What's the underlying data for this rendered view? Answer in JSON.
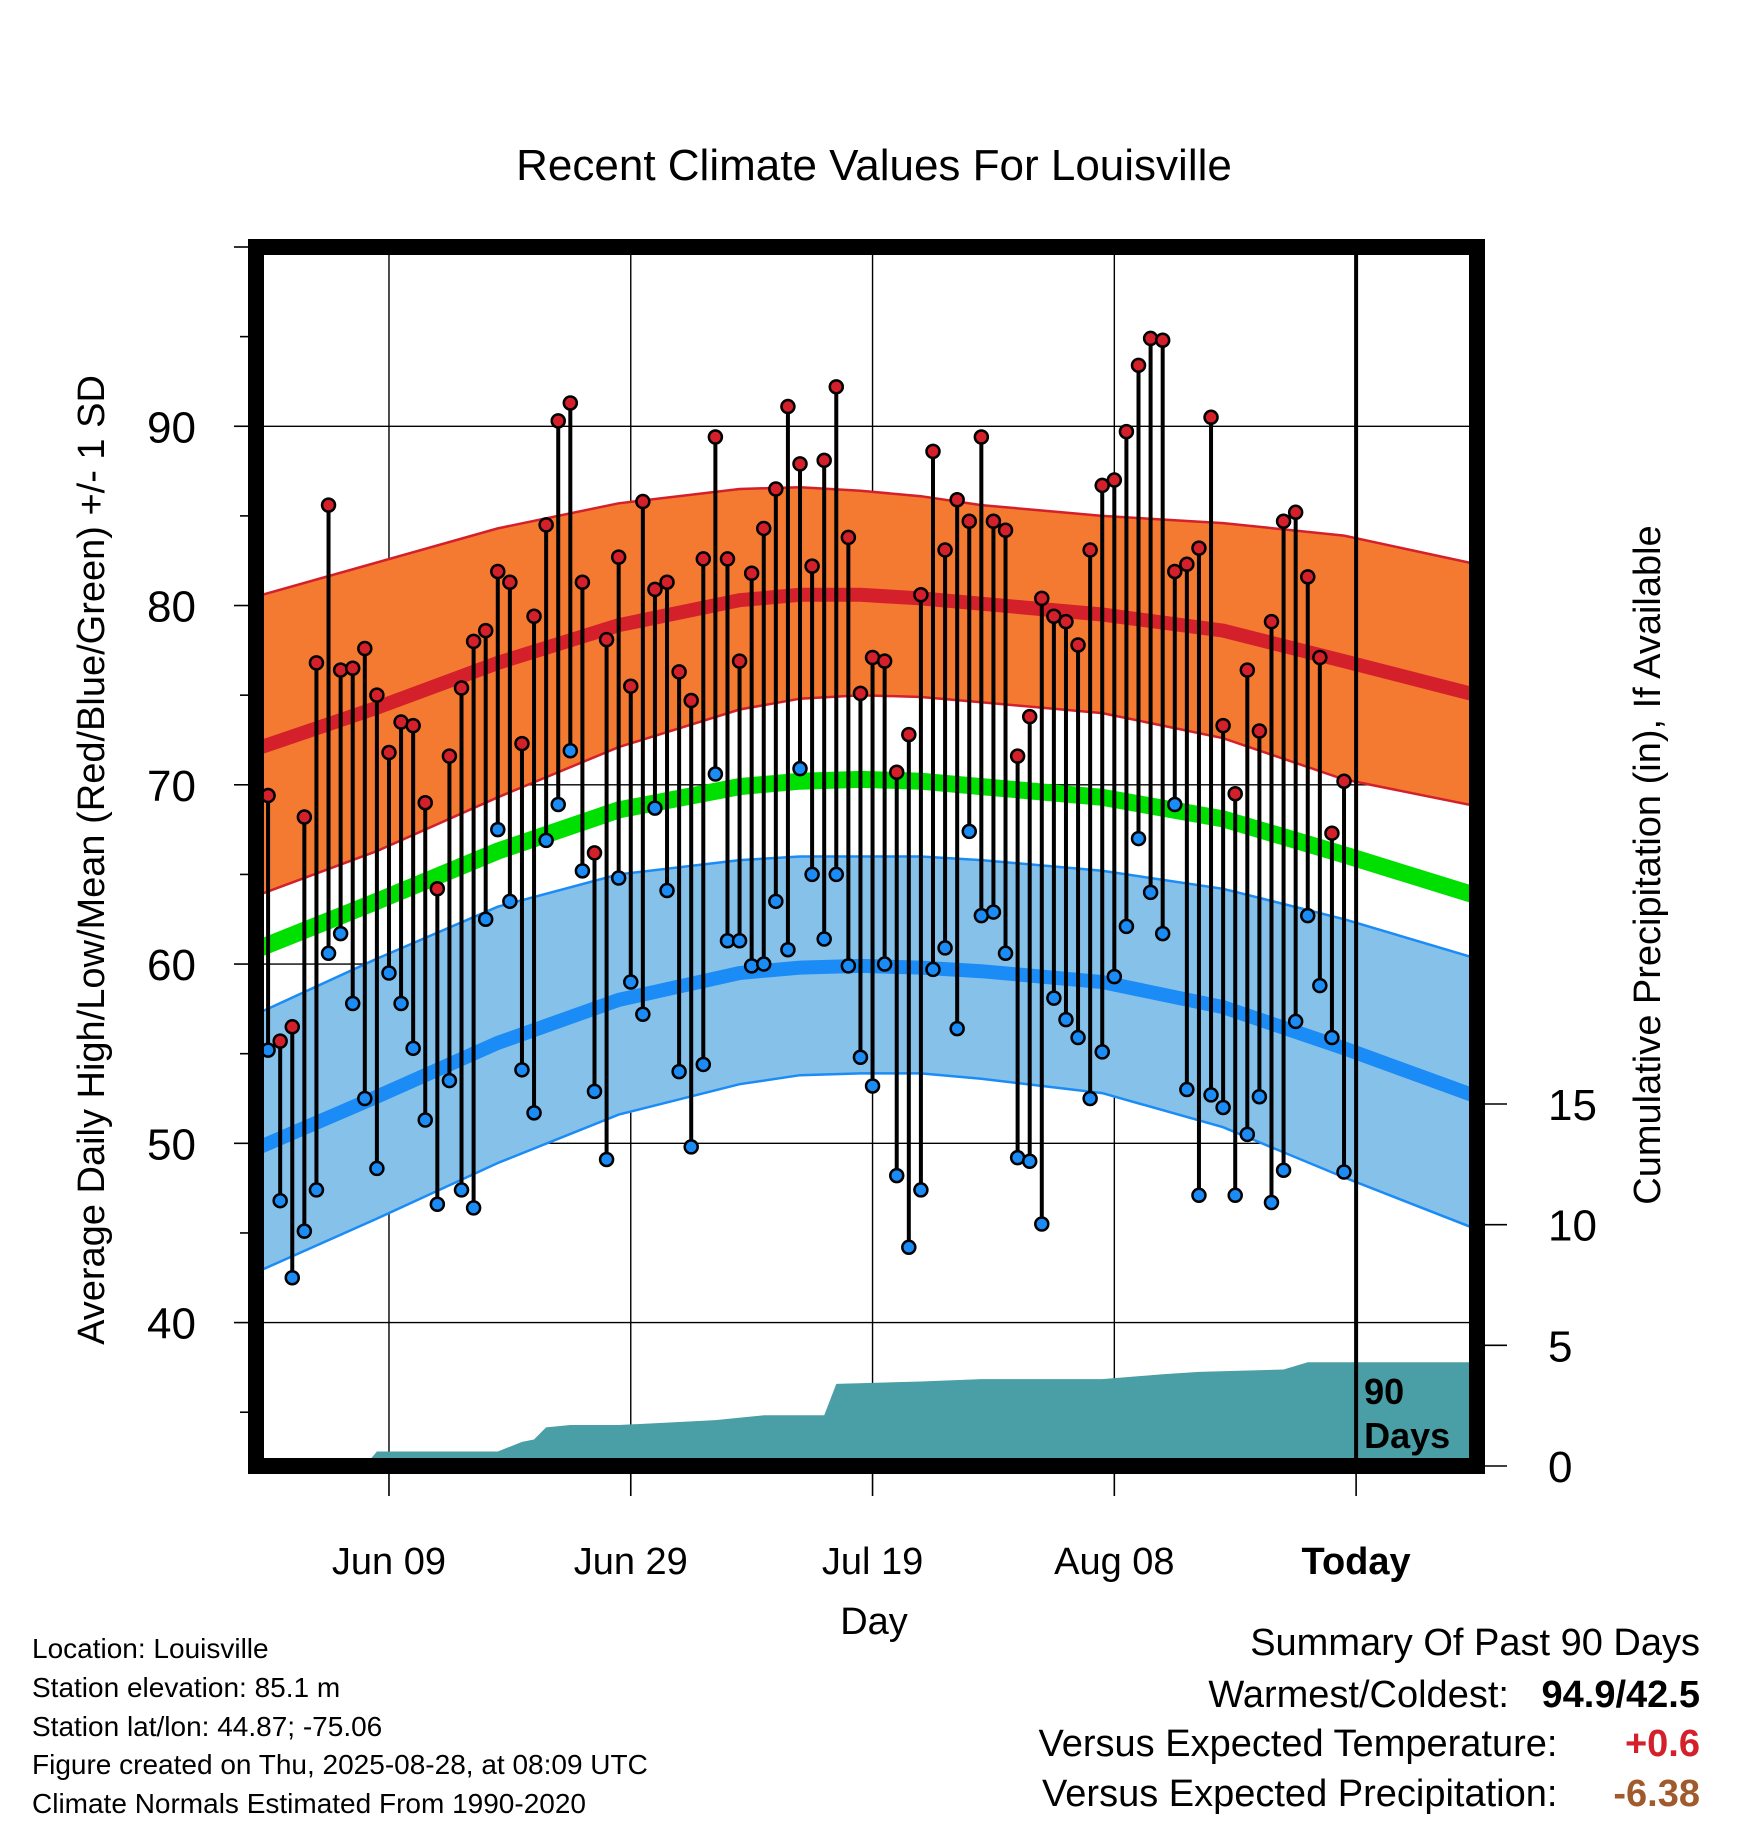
{
  "chart_data": {
    "type": "line",
    "title": "Recent Climate Values For Louisville",
    "xlabel": "Day",
    "ylabel_left": "Average Daily High/Low/Mean (Red/Blue/Green) +/- 1 SD",
    "ylabel_right": "Cumulative Precipitation (in), If Available",
    "x_tick_labels": [
      "Jun 09",
      "Jun 29",
      "Jul 19",
      "Aug 08",
      "Today"
    ],
    "x_tick_days": [
      11,
      31,
      51,
      71,
      91
    ],
    "x_range_days": [
      0,
      101
    ],
    "y_left_ticks": [
      40,
      50,
      60,
      70,
      80,
      90
    ],
    "y_left_range": [
      32,
      100
    ],
    "y_right_ticks": [
      0,
      5,
      10,
      15
    ],
    "y_right_range": [
      0,
      15
    ],
    "today_marker_label": "90 Days",
    "grid": true,
    "series": [
      {
        "name": "Daily High",
        "values": [
          69.4,
          55.7,
          56.5,
          68.2,
          76.8,
          85.6,
          76.4,
          76.5,
          77.6,
          75.0,
          71.8,
          73.5,
          73.3,
          69.0,
          64.2,
          71.6,
          75.4,
          78.0,
          78.6,
          81.9,
          81.3,
          72.3,
          79.4,
          84.5,
          90.3,
          91.3,
          81.3,
          66.2,
          78.1,
          82.7,
          75.5,
          85.8,
          80.9,
          81.3,
          76.3,
          74.7,
          82.6,
          89.4,
          82.6,
          76.9,
          81.8,
          84.3,
          86.5,
          91.1,
          87.9,
          82.2,
          88.1,
          92.2,
          83.8,
          75.1,
          77.1,
          76.9,
          70.7,
          72.8,
          80.6,
          88.6,
          83.1,
          85.9,
          84.7,
          89.4,
          84.7,
          84.2,
          71.6,
          73.8,
          80.4,
          79.4,
          79.1,
          77.8,
          83.1,
          86.7,
          87.0,
          89.7,
          93.4,
          94.9,
          94.8,
          81.9,
          82.3,
          83.2,
          90.5,
          73.3,
          69.5,
          76.4,
          73.0,
          79.1,
          84.7,
          85.2,
          81.6,
          77.1,
          67.3,
          70.2
        ]
      },
      {
        "name": "Daily Low",
        "values": [
          55.2,
          46.8,
          42.5,
          45.1,
          47.4,
          60.6,
          61.7,
          57.8,
          52.5,
          48.6,
          59.5,
          57.8,
          55.3,
          51.3,
          46.6,
          53.5,
          47.4,
          46.4,
          62.5,
          67.5,
          63.5,
          54.1,
          51.7,
          66.9,
          68.9,
          71.9,
          65.2,
          52.9,
          49.1,
          64.8,
          59.0,
          57.2,
          68.7,
          64.1,
          54.0,
          49.8,
          54.4,
          70.6,
          61.3,
          61.3,
          59.9,
          60.0,
          63.5,
          60.8,
          70.9,
          65.0,
          61.4,
          65.0,
          59.9,
          54.8,
          53.2,
          60.0,
          48.2,
          44.2,
          47.4,
          59.7,
          60.9,
          56.4,
          67.4,
          62.7,
          62.9,
          60.6,
          49.2,
          49.0,
          45.5,
          58.1,
          56.9,
          55.9,
          52.5,
          55.1,
          59.3,
          62.1,
          67.0,
          64.0,
          61.7,
          68.9,
          53.0,
          47.1,
          52.7,
          52.0,
          47.1,
          50.5,
          52.6,
          46.7,
          48.5,
          56.8,
          62.7,
          58.8,
          55.9,
          48.4
        ]
      },
      {
        "name": "Normal High",
        "days": [
          0,
          10,
          20,
          30,
          40,
          45,
          50,
          55,
          60,
          70,
          80,
          90,
          101
        ],
        "values": [
          72.0,
          74.3,
          76.8,
          78.9,
          80.3,
          80.6,
          80.6,
          80.4,
          80.1,
          79.5,
          78.6,
          76.9,
          75.0
        ]
      },
      {
        "name": "Normal High +1 SD",
        "days": [
          0,
          10,
          20,
          30,
          40,
          45,
          50,
          55,
          60,
          70,
          80,
          90,
          101
        ],
        "values": [
          80.5,
          82.4,
          84.3,
          85.7,
          86.5,
          86.6,
          86.4,
          86.1,
          85.6,
          85.0,
          84.6,
          83.9,
          82.3
        ]
      },
      {
        "name": "Normal High -1 SD",
        "days": [
          0,
          10,
          20,
          30,
          40,
          45,
          50,
          55,
          60,
          70,
          80,
          90,
          101
        ],
        "values": [
          63.8,
          66.3,
          69.3,
          72.1,
          74.2,
          74.8,
          75.0,
          74.9,
          74.6,
          74.0,
          72.6,
          70.3,
          68.8
        ]
      },
      {
        "name": "Normal Mean",
        "days": [
          0,
          10,
          20,
          30,
          40,
          45,
          50,
          55,
          60,
          70,
          80,
          90,
          101
        ],
        "values": [
          60.8,
          63.5,
          66.3,
          68.6,
          69.9,
          70.2,
          70.3,
          70.2,
          69.9,
          69.3,
          68.1,
          66.1,
          63.8
        ]
      },
      {
        "name": "Normal Low",
        "days": [
          0,
          10,
          20,
          30,
          40,
          45,
          50,
          55,
          60,
          70,
          80,
          90,
          101
        ],
        "values": [
          49.7,
          52.6,
          55.6,
          58.0,
          59.5,
          59.8,
          59.9,
          59.8,
          59.6,
          59.0,
          57.6,
          55.3,
          52.6
        ]
      },
      {
        "name": "Normal Low +1 SD",
        "days": [
          0,
          10,
          20,
          30,
          40,
          45,
          50,
          55,
          60,
          70,
          80,
          90,
          101
        ],
        "values": [
          57.2,
          60.3,
          63.2,
          65.0,
          65.8,
          66.0,
          66.0,
          66.0,
          65.8,
          65.2,
          64.2,
          62.5,
          60.3
        ]
      },
      {
        "name": "Normal Low -1 SD",
        "days": [
          0,
          10,
          20,
          30,
          40,
          45,
          50,
          55,
          60,
          70,
          80,
          90,
          101
        ],
        "values": [
          42.8,
          45.8,
          48.9,
          51.6,
          53.3,
          53.8,
          53.9,
          53.9,
          53.6,
          52.8,
          50.9,
          48.1,
          45.2
        ]
      },
      {
        "name": "Cumulative Precipitation",
        "days": [
          0,
          9,
          10,
          20,
          22,
          23,
          24,
          26,
          30,
          34,
          38,
          42,
          47,
          48,
          55,
          60,
          70,
          75,
          78,
          85,
          87,
          101
        ],
        "values": [
          0.0,
          0.0,
          0.6,
          0.6,
          1.0,
          1.1,
          1.6,
          1.7,
          1.7,
          1.8,
          1.9,
          2.1,
          2.1,
          3.4,
          3.5,
          3.6,
          3.6,
          3.8,
          3.9,
          4.0,
          4.3,
          4.3
        ]
      }
    ]
  },
  "info": {
    "location": "Location: Louisville",
    "elevation": "Station elevation: 85.1 m",
    "latlon": "Station lat/lon: 44.87; -75.06",
    "created": "Figure created on Thu, 2025-08-28, at 08:09 UTC",
    "normals": "Climate Normals Estimated From 1990-2020"
  },
  "summary": {
    "heading": "Summary Of Past 90 Days",
    "warm_cold_label": "Warmest/Coldest:",
    "warm_cold_value": "94.9/42.5",
    "temp_label": "Versus Expected Temperature:",
    "temp_value": "+0.6",
    "precip_label": "Versus Expected Precipitation:",
    "precip_value": "-6.38"
  },
  "colors": {
    "high": "#d3202a",
    "high_band": "#f47a32",
    "mean": "#00e000",
    "low": "#1b8cf5",
    "low_band": "#86c1ea",
    "precip": "#4a9ea6",
    "temp_summary": "#d3202a",
    "precip_summary": "#a05a2c"
  }
}
